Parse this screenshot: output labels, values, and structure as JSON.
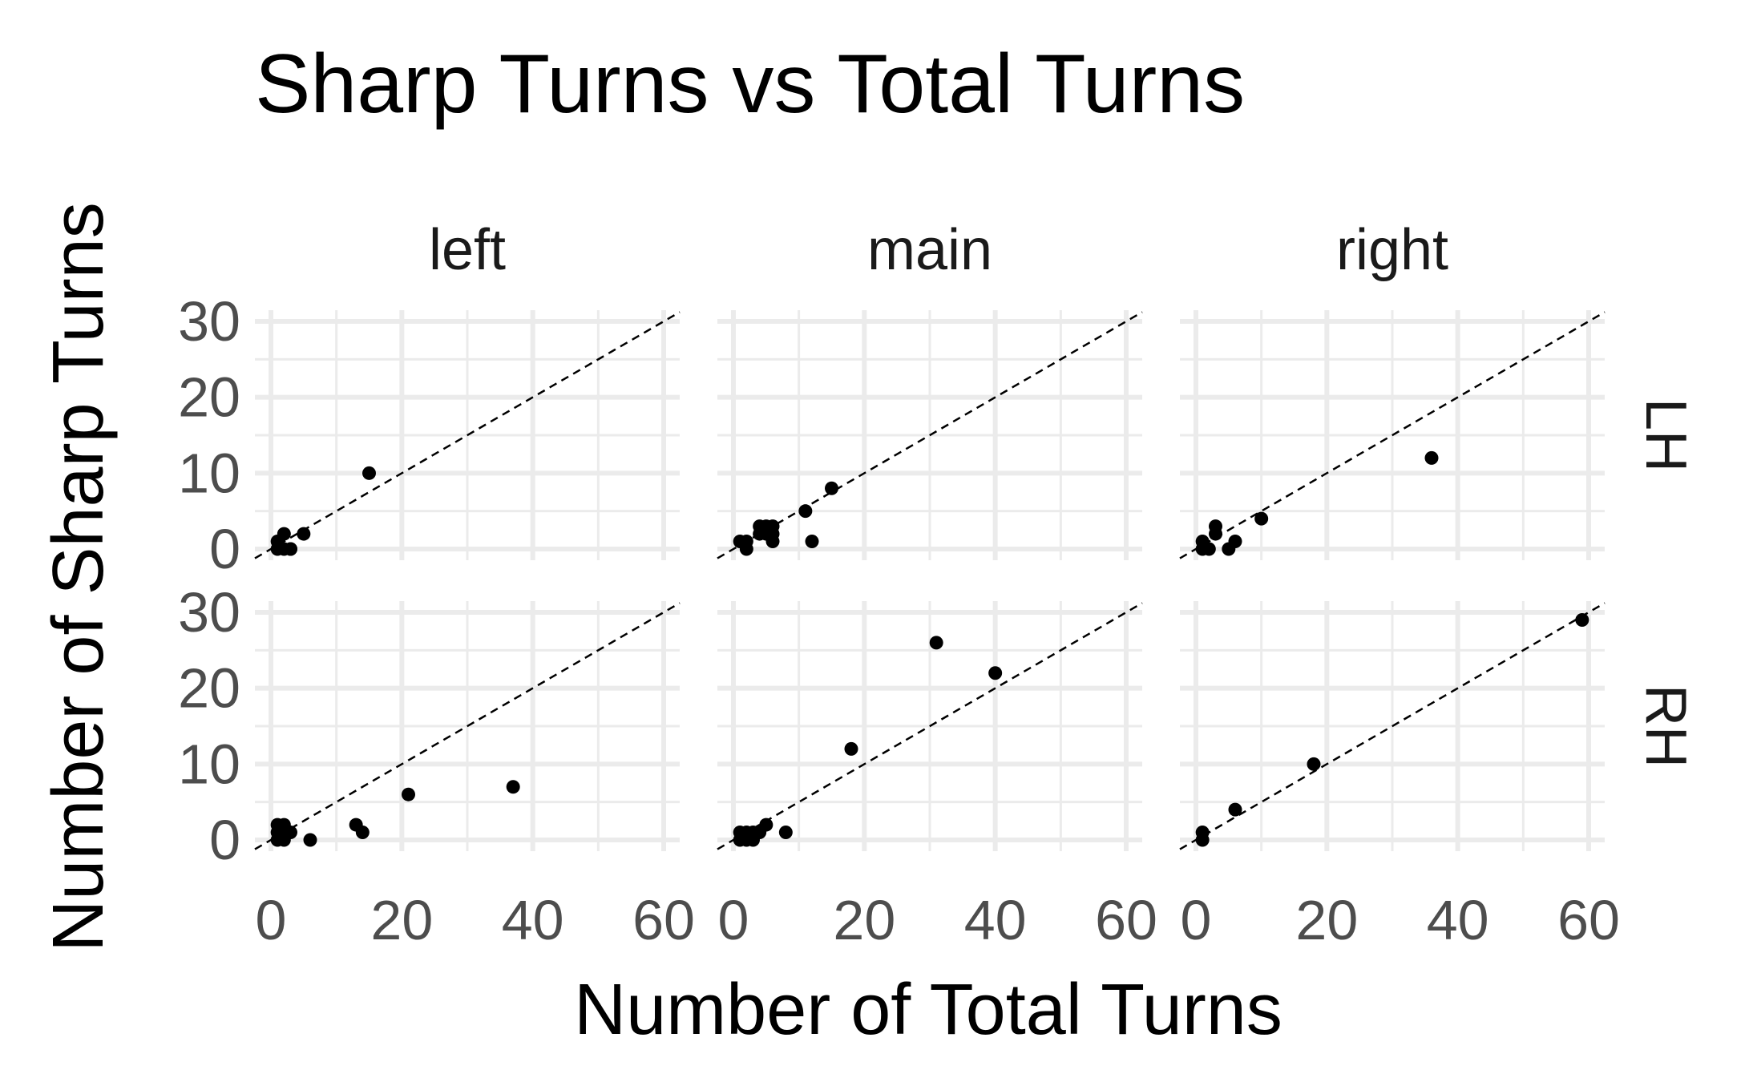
{
  "chart_data": {
    "type": "scatter",
    "title": "Sharp Turns vs Total Turns",
    "xlabel": "Number of Total Turns",
    "ylabel": "Number of Sharp Turns",
    "xlim": [
      0,
      60
    ],
    "ylim": [
      0,
      30
    ],
    "x_ticks": [
      0,
      20,
      40,
      60
    ],
    "y_ticks": [
      0,
      10,
      20,
      30
    ],
    "grid": true,
    "reference_line": {
      "slope": 0.5,
      "intercept": 0,
      "style": "dashed"
    },
    "facet_columns": [
      "left",
      "main",
      "right"
    ],
    "facet_rows": [
      "LH",
      "RH"
    ],
    "panels": [
      {
        "col": "left",
        "row": "LH",
        "points": [
          [
            1,
            0
          ],
          [
            1,
            1
          ],
          [
            2,
            0
          ],
          [
            2,
            2
          ],
          [
            3,
            0
          ],
          [
            3,
            0
          ],
          [
            5,
            2
          ],
          [
            15,
            10
          ]
        ]
      },
      {
        "col": "main",
        "row": "LH",
        "points": [
          [
            1,
            1
          ],
          [
            2,
            0
          ],
          [
            2,
            1
          ],
          [
            4,
            2
          ],
          [
            4,
            3
          ],
          [
            5,
            2
          ],
          [
            5,
            3
          ],
          [
            6,
            1
          ],
          [
            6,
            2
          ],
          [
            6,
            3
          ],
          [
            11,
            5
          ],
          [
            12,
            1
          ],
          [
            15,
            8
          ]
        ]
      },
      {
        "col": "right",
        "row": "LH",
        "points": [
          [
            1,
            0
          ],
          [
            1,
            1
          ],
          [
            2,
            0
          ],
          [
            3,
            2
          ],
          [
            3,
            3
          ],
          [
            5,
            0
          ],
          [
            6,
            1
          ],
          [
            10,
            4
          ],
          [
            36,
            12
          ]
        ]
      },
      {
        "col": "left",
        "row": "RH",
        "points": [
          [
            1,
            0
          ],
          [
            1,
            1
          ],
          [
            1,
            2
          ],
          [
            2,
            0
          ],
          [
            2,
            1
          ],
          [
            2,
            2
          ],
          [
            3,
            1
          ],
          [
            6,
            0
          ],
          [
            13,
            2
          ],
          [
            14,
            1
          ],
          [
            21,
            6
          ],
          [
            37,
            7
          ]
        ]
      },
      {
        "col": "main",
        "row": "RH",
        "points": [
          [
            1,
            0
          ],
          [
            1,
            1
          ],
          [
            2,
            0
          ],
          [
            2,
            1
          ],
          [
            3,
            0
          ],
          [
            3,
            1
          ],
          [
            4,
            1
          ],
          [
            5,
            2
          ],
          [
            8,
            1
          ],
          [
            18,
            12
          ],
          [
            31,
            26
          ],
          [
            40,
            22
          ]
        ]
      },
      {
        "col": "right",
        "row": "RH",
        "points": [
          [
            1,
            0
          ],
          [
            1,
            1
          ],
          [
            6,
            4
          ],
          [
            18,
            10
          ],
          [
            59,
            29
          ]
        ]
      }
    ]
  }
}
